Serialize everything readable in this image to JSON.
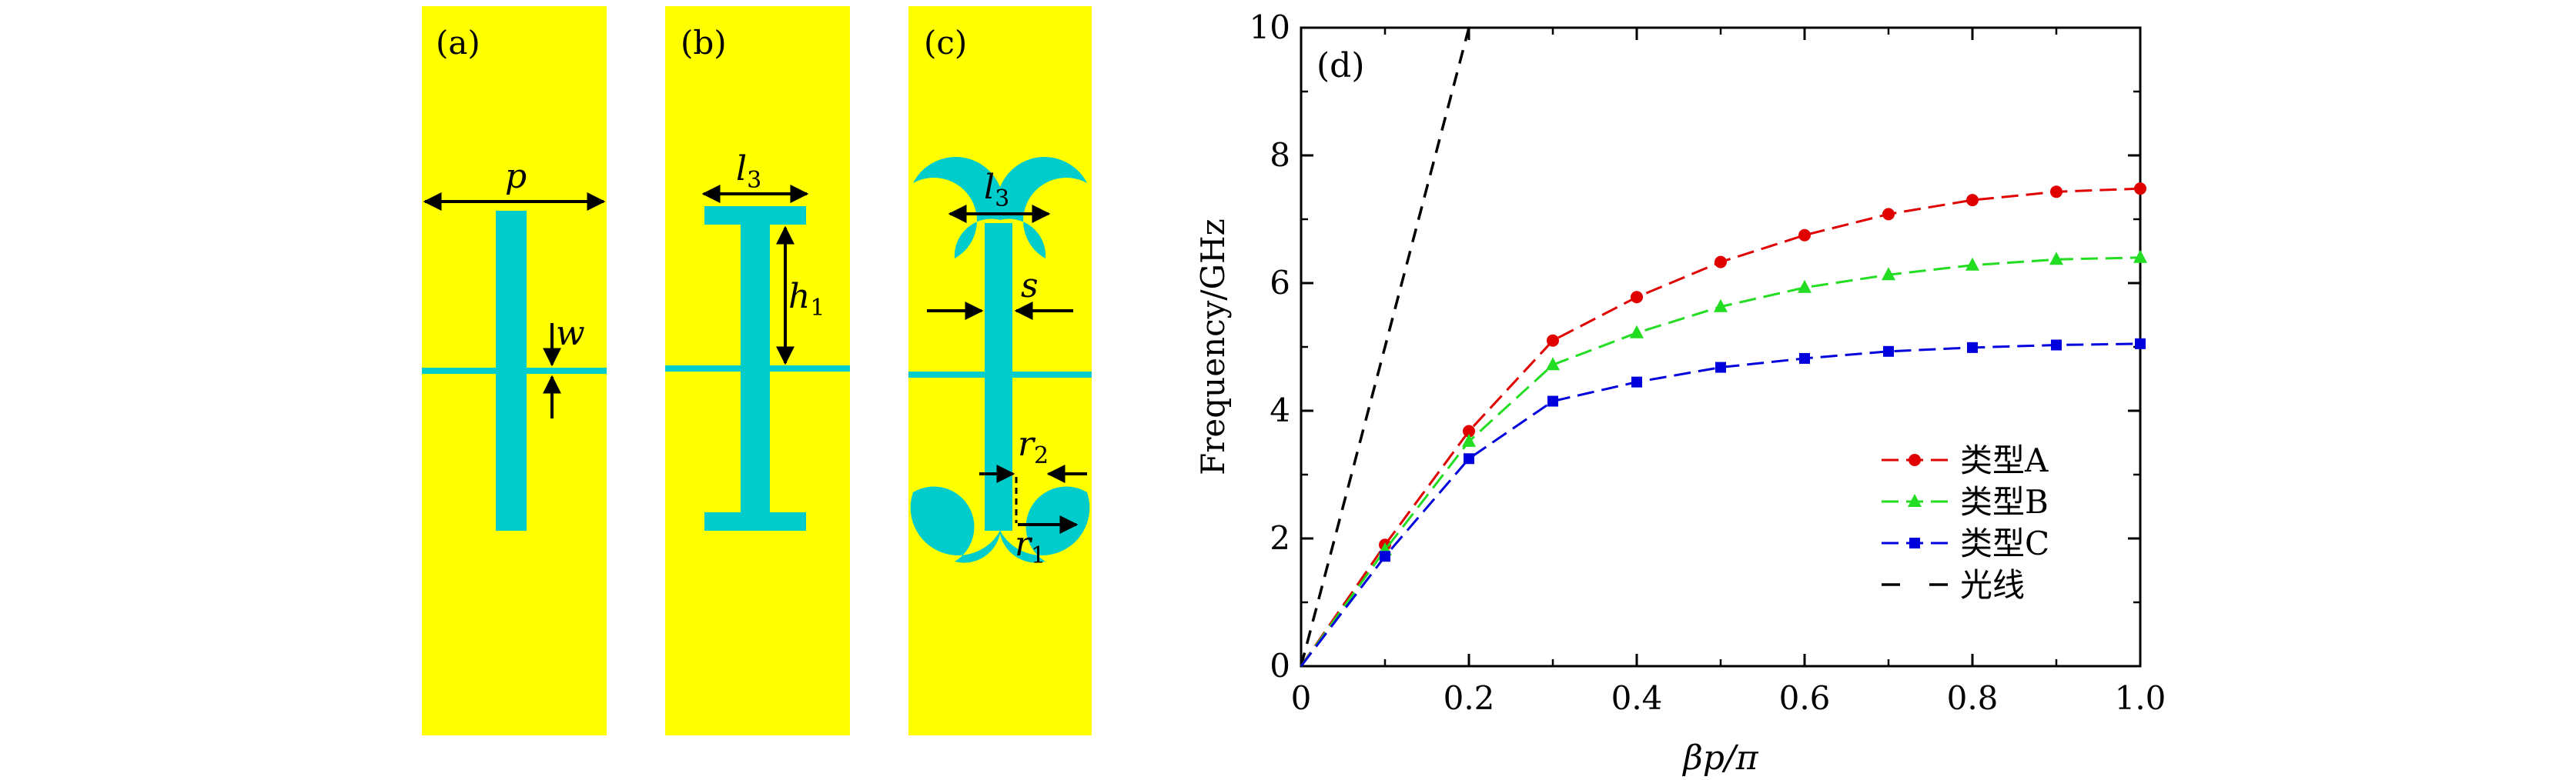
{
  "panels": {
    "a": {
      "label": "(a)",
      "dims": {
        "p": "p",
        "w": "w"
      }
    },
    "b": {
      "label": "(b)",
      "dims": {
        "l": "l",
        "l_sub": "3",
        "h": "h",
        "h_sub": "1"
      }
    },
    "c": {
      "label": "(c)",
      "dims": {
        "l": "l",
        "l_sub": "3",
        "s": "s",
        "r2": "r",
        "r2_sub": "2",
        "r1": "r",
        "r1_sub": "1"
      }
    },
    "d": {
      "label": "(d)"
    }
  },
  "colors": {
    "substrate": "#FFFF00",
    "metal": "#00CCCC",
    "series_a": "#E00000",
    "series_b": "#22DD22",
    "series_c": "#0000DD",
    "light_line": "#000000"
  },
  "chart_data": {
    "type": "line",
    "xlabel": "βp/π",
    "ylabel": "Frequency/GHz",
    "xlim": [
      0,
      1.0
    ],
    "ylim": [
      0,
      10
    ],
    "xticks": [
      "0",
      "0.2",
      "0.4",
      "0.6",
      "0.8",
      "1.0"
    ],
    "yticks": [
      "0",
      "2",
      "4",
      "6",
      "8",
      "10"
    ],
    "grid": false,
    "legend_position": "bottom-right",
    "x": [
      0,
      0.1,
      0.2,
      0.3,
      0.4,
      0.5,
      0.6,
      0.7,
      0.8,
      0.9,
      1.0
    ],
    "series": [
      {
        "name": "类型A",
        "marker": "circle",
        "values": [
          0,
          1.9,
          3.68,
          5.1,
          5.78,
          6.33,
          6.75,
          7.08,
          7.3,
          7.43,
          7.48
        ]
      },
      {
        "name": "类型B",
        "marker": "triangle",
        "values": [
          0,
          1.82,
          3.52,
          4.72,
          5.22,
          5.63,
          5.93,
          6.13,
          6.28,
          6.37,
          6.4
        ]
      },
      {
        "name": "类型C",
        "marker": "square",
        "values": [
          0,
          1.72,
          3.25,
          4.15,
          4.45,
          4.68,
          4.82,
          4.93,
          4.99,
          5.03,
          5.05
        ]
      }
    ],
    "light_line": {
      "name": "光线",
      "x": [
        0,
        0.2
      ],
      "values": [
        0,
        10
      ]
    }
  }
}
